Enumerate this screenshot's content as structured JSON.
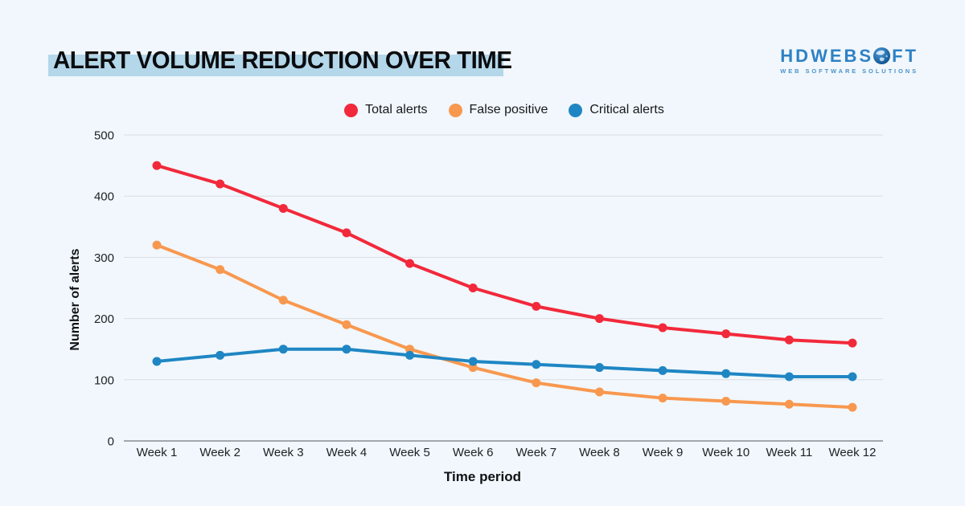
{
  "page": {
    "background_color": "#F1F7FC"
  },
  "header": {
    "title": "ALERT VOLUME REDUCTION OVER TIME",
    "title_highlight_color": "#B4D7EA",
    "logo": {
      "brand_pre": "HDWEBS",
      "brand_post": "FT",
      "globe_icon": "globe-icon",
      "tagline": "WEB SOFTWARE SOLUTIONS",
      "brand_color": "#2E81C4"
    }
  },
  "chart_data": {
    "type": "line",
    "title": "ALERT VOLUME REDUCTION OVER TIME",
    "x": [
      "Week 1",
      "Week 2",
      "Week 3",
      "Week 4",
      "Week 5",
      "Week 6",
      "Week 7",
      "Week 8",
      "Week 9",
      "Week 10",
      "Week 11",
      "Week 12"
    ],
    "series": [
      {
        "name": "Total alerts",
        "color": "#F2293B",
        "values": [
          450,
          420,
          380,
          340,
          290,
          250,
          220,
          200,
          185,
          175,
          165,
          160
        ]
      },
      {
        "name": "False positive",
        "color": "#F8984F",
        "values": [
          320,
          280,
          230,
          190,
          150,
          120,
          95,
          80,
          70,
          65,
          60,
          55
        ]
      },
      {
        "name": "Critical alerts",
        "color": "#1F86C3",
        "values": [
          130,
          140,
          150,
          150,
          140,
          130,
          125,
          120,
          115,
          110,
          105,
          105
        ]
      }
    ],
    "xlabel": "Time period",
    "ylabel": "Number of alerts",
    "ylim": [
      0,
      500
    ],
    "yticks": [
      0,
      100,
      200,
      300,
      400,
      500
    ],
    "grid": true,
    "legend_position": "top",
    "style": {
      "gridline_color": "#D9DDE2",
      "axis_line_color": "#A2A7AD",
      "tick_text_color": "#1D2125",
      "line_width": 4,
      "marker_radius": 5.5
    }
  }
}
